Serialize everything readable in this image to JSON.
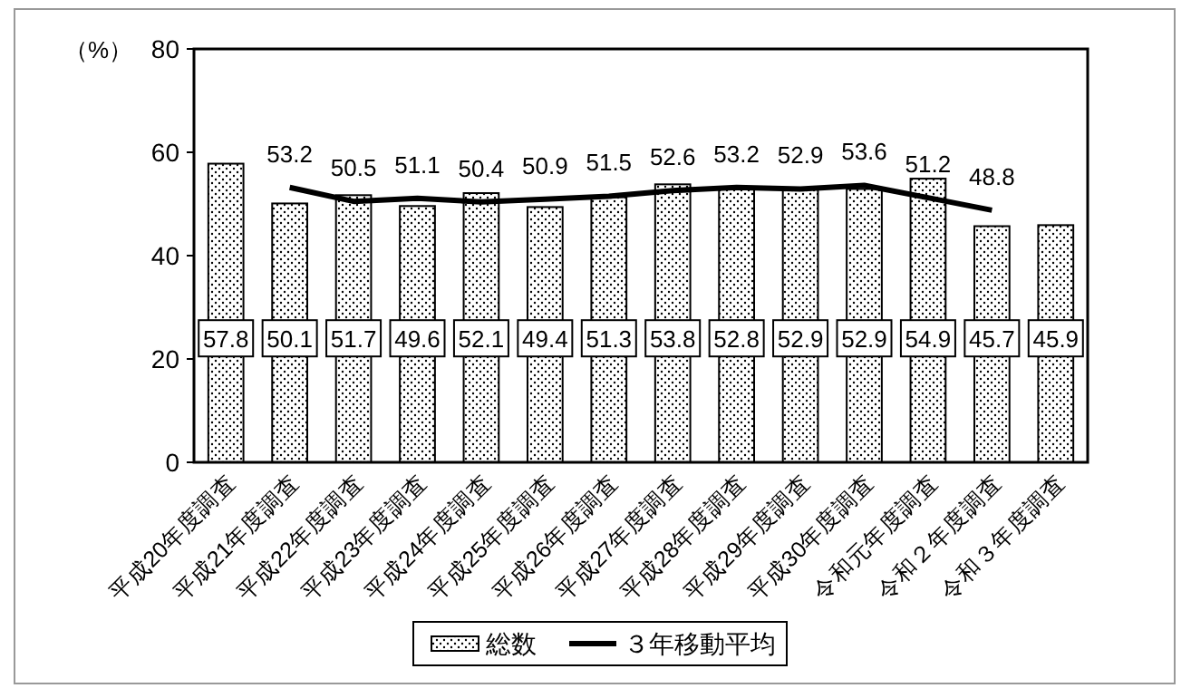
{
  "chart_data": {
    "type": "bar",
    "ylabel": "（%）",
    "categories": [
      "平成20年度調査",
      "平成21年度調査",
      "平成22年度調査",
      "平成23年度調査",
      "平成24年度調査",
      "平成25年度調査",
      "平成26年度調査",
      "平成27年度調査",
      "平成28年度調査",
      "平成29年度調査",
      "平成30年度調査",
      "令和元年度調査",
      "令和２年度調査",
      "令和３年度調査"
    ],
    "series": [
      {
        "name": "総数",
        "color": "#000000",
        "values": [
          57.8,
          50.1,
          51.7,
          49.6,
          52.1,
          49.4,
          51.3,
          53.8,
          52.8,
          52.9,
          52.9,
          54.9,
          45.7,
          45.9
        ]
      },
      {
        "name": "３年移動平均",
        "type": "line",
        "color": "#000000",
        "values": [
          null,
          53.2,
          50.5,
          51.1,
          50.4,
          50.9,
          51.5,
          52.6,
          53.2,
          52.9,
          53.6,
          51.2,
          48.8,
          null
        ]
      }
    ],
    "ylim": [
      0,
      80
    ],
    "yticks": [
      0,
      20,
      40,
      60,
      80
    ],
    "data_labels": true,
    "legend": "bottom",
    "grid": false,
    "marker": "none",
    "line_style": "solid"
  }
}
